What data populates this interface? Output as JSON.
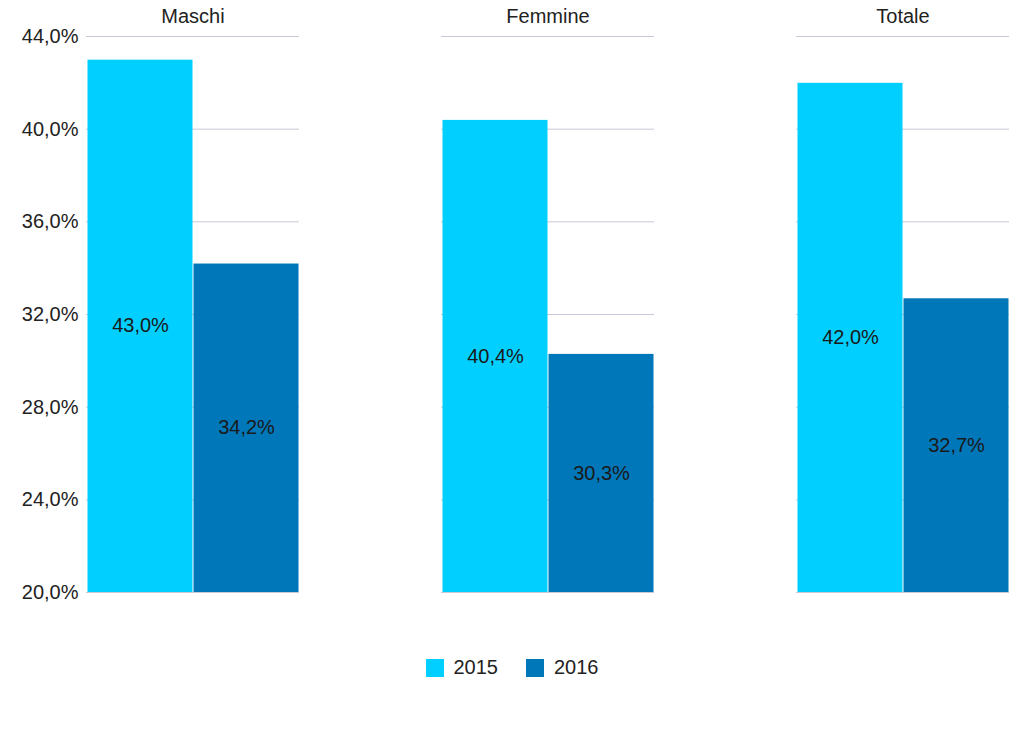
{
  "chart_data": {
    "type": "bar",
    "categories": [
      "Maschi",
      "Femmine",
      "Totale"
    ],
    "series": [
      {
        "name": "2015",
        "color": "#00cfff",
        "values": [
          43.0,
          40.4,
          42.0
        ],
        "value_labels": [
          "43,0%",
          "40,4%",
          "42,0%"
        ]
      },
      {
        "name": "2016",
        "color": "#0077b9",
        "values": [
          34.2,
          30.3,
          32.7
        ],
        "value_labels": [
          "34,2%",
          "30,3%",
          "32,7%"
        ]
      }
    ],
    "ylim": [
      20,
      44
    ],
    "yticks": [
      {
        "value": 20,
        "label": "20,0%"
      },
      {
        "value": 24,
        "label": "24,0%"
      },
      {
        "value": 28,
        "label": "28,0%"
      },
      {
        "value": 32,
        "label": "32,0%"
      },
      {
        "value": 36,
        "label": "36,0%"
      },
      {
        "value": 40,
        "label": "40,0%"
      },
      {
        "value": 44,
        "label": "44,0%"
      }
    ],
    "grid": true,
    "legend": "bottom",
    "data_labels": true
  }
}
